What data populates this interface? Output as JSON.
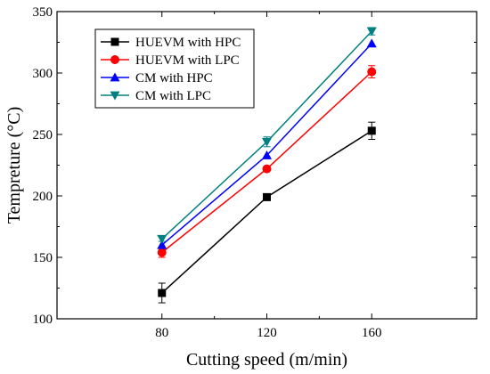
{
  "chart_data": {
    "type": "line",
    "title": "",
    "xlabel": "Cutting speed (m/min)",
    "ylabel": "Tempreture (°C)",
    "x": [
      80,
      120,
      160
    ],
    "xlim": [
      40,
      200
    ],
    "ylim": [
      100,
      350
    ],
    "xticks": [
      80,
      120,
      160
    ],
    "yticks": [
      100,
      150,
      200,
      250,
      300,
      350
    ],
    "grid": false,
    "legend_position": "top-left",
    "series": [
      {
        "name": "HUEVM with HPC",
        "values": [
          121,
          199,
          253
        ],
        "errors": [
          8,
          0,
          7
        ],
        "color": "#000000",
        "marker": "square"
      },
      {
        "name": "HUEVM with LPC",
        "values": [
          154,
          222,
          301
        ],
        "errors": [
          4,
          0,
          5
        ],
        "color": "#ff0000",
        "marker": "circle"
      },
      {
        "name": "CM with HPC",
        "values": [
          160,
          233,
          324
        ],
        "errors": [
          0,
          0,
          0
        ],
        "color": "#0000ff",
        "marker": "triangle-up"
      },
      {
        "name": "CM with LPC",
        "values": [
          165,
          244,
          334
        ],
        "errors": [
          2,
          4,
          3
        ],
        "color": "#008080",
        "marker": "triangle-down"
      }
    ]
  }
}
